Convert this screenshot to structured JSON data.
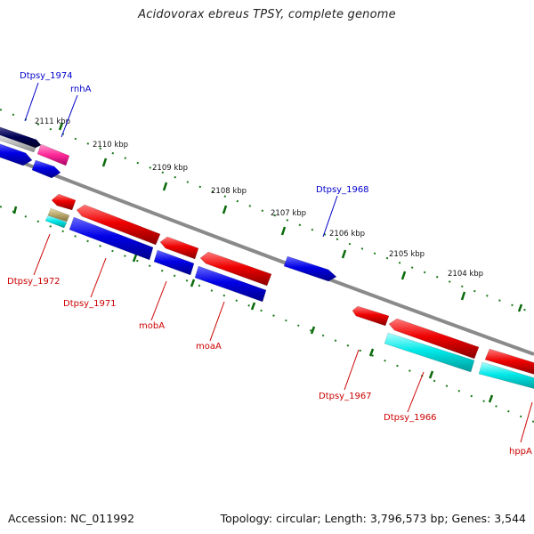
{
  "title": "Acidovorax ebreus TPSY, complete genome",
  "footer": {
    "accession": "Accession: NC_011992",
    "summary": "Topology: circular; Length: 3,796,573 bp; Genes: 3,544"
  },
  "ticks": [
    "2111 kbp",
    "2110 kbp",
    "2109 kbp",
    "2108 kbp",
    "2107 kbp",
    "2106 kbp",
    "2105 kbp",
    "2104 kbp"
  ],
  "gene_labels": [
    {
      "text": "Dtpsy_1974",
      "color": "#0000cc"
    },
    {
      "text": "rnhA",
      "color": "#0000cc"
    },
    {
      "text": "Dtpsy_1968",
      "color": "#0000cc"
    },
    {
      "text": "Dtpsy_1972",
      "color": "#cc0000"
    },
    {
      "text": "Dtpsy_1971",
      "color": "#cc0000"
    },
    {
      "text": "mobA",
      "color": "#cc0000"
    },
    {
      "text": "moaA",
      "color": "#cc0000"
    },
    {
      "text": "Dtpsy_1967",
      "color": "#cc0000"
    },
    {
      "text": "Dtpsy_1966",
      "color": "#cc0000"
    },
    {
      "text": "hppA",
      "color": "#cc0000"
    }
  ],
  "colors": {
    "forward_strand": "#0000ee",
    "reverse_strand": "#ee0000",
    "rrna": "#00eeee",
    "misc": "#ff33aa",
    "backbone": "#888888",
    "ruler": "#006600"
  }
}
